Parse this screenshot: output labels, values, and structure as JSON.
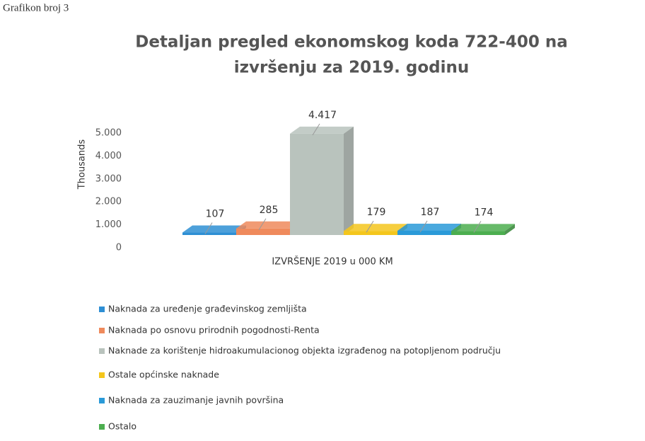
{
  "caption": "Grafikon broj 3",
  "chart_data": {
    "type": "bar3d",
    "title": [
      "Detaljan pregled ekonomskog koda 722-400 na",
      "izvršenju za 2019. godinu"
    ],
    "y_label": "Thousands",
    "categories": [
      "IZVRŠENJE 2019 u 000 KM"
    ],
    "series": [
      {
        "name": "Naknada za uređenje građevinskog zemljišta",
        "color": "#2e8fd4",
        "values": [
          107
        ],
        "value_labels": [
          "107"
        ]
      },
      {
        "name": "Naknada po osnovu prirodnih pogodnosti-Renta",
        "color": "#ef8a5c",
        "values": [
          285
        ],
        "value_labels": [
          "285"
        ]
      },
      {
        "name": "Naknade za korištenje hidroakumulacionog objekta izgrađenog na potopljenom području",
        "color": "#b9c3bd",
        "values": [
          4417
        ],
        "value_labels": [
          "4.417"
        ]
      },
      {
        "name": "Ostale općinske naknade",
        "color": "#f4c61c",
        "values": [
          179
        ],
        "value_labels": [
          "179"
        ]
      },
      {
        "name": "Naknada za zauzimanje javnih površina",
        "color": "#2a9ad8",
        "values": [
          187
        ],
        "value_labels": [
          "187"
        ]
      },
      {
        "name": "Ostalo",
        "color": "#4cae4f",
        "values": [
          174
        ],
        "value_labels": [
          "174"
        ]
      }
    ],
    "ylim": [
      0,
      5000
    ],
    "yticks": [
      0,
      {
        "value": 1000,
        "label": "1.000"
      },
      {
        "value": 2000,
        "label": "2.000"
      },
      {
        "value": 3000,
        "label": "3.000"
      },
      {
        "value": 4000,
        "label": "4.000"
      },
      {
        "value": 5000,
        "label": "5.000"
      }
    ],
    "legend": "bottom"
  }
}
